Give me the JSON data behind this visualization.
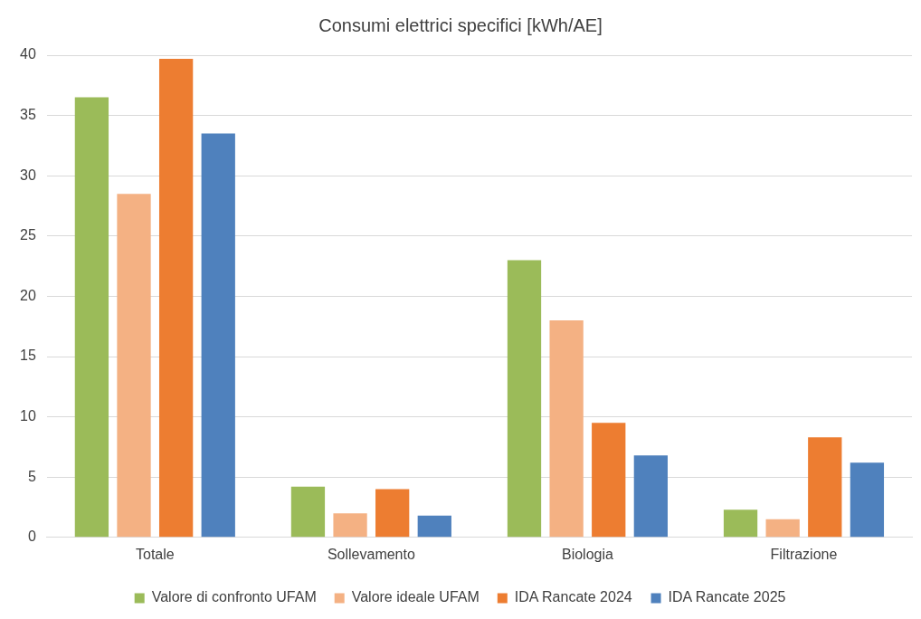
{
  "chart_data": {
    "type": "bar",
    "title": "Consumi elettrici specifici [kWh/AE]",
    "categories": [
      "Totale",
      "Sollevamento",
      "Biologia",
      "Filtrazione"
    ],
    "series": [
      {
        "name": "Valore di confronto UFAM",
        "color": "#9bbb59",
        "values": [
          36.5,
          4.2,
          23.0,
          2.3
        ]
      },
      {
        "name": "Valore ideale UFAM",
        "color": "#f4b183",
        "values": [
          28.5,
          2.0,
          18.0,
          1.5
        ]
      },
      {
        "name": "IDA Rancate 2024",
        "color": "#ed7d31",
        "values": [
          39.7,
          4.0,
          9.5,
          8.3
        ]
      },
      {
        "name": "IDA Rancate 2025",
        "color": "#4f81bd",
        "values": [
          33.5,
          1.8,
          6.8,
          6.2
        ]
      }
    ],
    "ylim": [
      0,
      40
    ],
    "yticks": [
      0,
      5,
      10,
      15,
      20,
      25,
      30,
      35,
      40
    ],
    "grid": "y",
    "legend": "bottom"
  }
}
